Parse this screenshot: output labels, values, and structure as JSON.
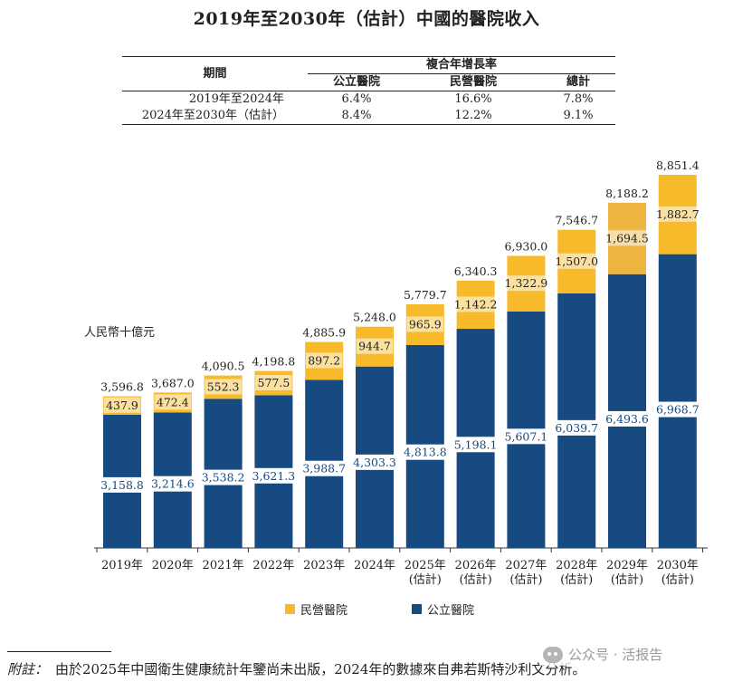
{
  "title": "2019年至2030年（估計）中國的醫院收入",
  "cagr_table": {
    "header_group": "複合年增長率",
    "period_header": "期間",
    "columns": [
      "公立醫院",
      "民營醫院",
      "總計"
    ],
    "rows": [
      {
        "period": "2019年至2024年",
        "values": [
          "6.4%",
          "16.6%",
          "7.8%"
        ]
      },
      {
        "period": "2024年至2030年（估計）",
        "values": [
          "8.4%",
          "12.2%",
          "9.1%"
        ]
      }
    ]
  },
  "unit_label": "人民幣十億元",
  "legend": {
    "private": "民營醫院",
    "public": "公立醫院"
  },
  "colors": {
    "public": "#164a80",
    "private": "#f6ba2a",
    "private_highlight": "#eeb640"
  },
  "footnote": {
    "label": "附註：",
    "text": "由於2025年中國衛生健康統計年鑒尚未出版，2024年的數據來自弗若斯特沙利文分析。"
  },
  "watermark": "公众号 · 活报告",
  "chart_data": {
    "type": "bar",
    "stacked": true,
    "categories": [
      "2019年",
      "2020年",
      "2021年",
      "2022年",
      "2023年",
      "2024年",
      "2025年\n(估計)",
      "2026年\n(估計)",
      "2027年\n(估計)",
      "2028年\n(估計)",
      "2029年\n(估計)",
      "2030年\n(估計)"
    ],
    "series": [
      {
        "name": "公立醫院",
        "values": [
          3158.8,
          3214.6,
          3538.2,
          3621.3,
          3988.7,
          4303.3,
          4813.8,
          5198.1,
          5607.1,
          6039.7,
          6493.6,
          6968.7
        ]
      },
      {
        "name": "民營醫院",
        "values": [
          437.9,
          472.4,
          552.3,
          577.5,
          897.2,
          944.7,
          965.9,
          1142.2,
          1322.9,
          1507.0,
          1694.5,
          1882.7
        ]
      }
    ],
    "totals": [
      3596.8,
      3687.0,
      4090.5,
      4198.8,
      4885.9,
      5248.0,
      5779.7,
      6340.3,
      6930.0,
      7546.7,
      8188.2,
      8851.4
    ],
    "labels": {
      "public": [
        "3,158.8",
        "3,214.6",
        "3,538.2",
        "3,621.3",
        "3,988.7",
        "4,303.3",
        "4,813.8",
        "5,198.1",
        "5,607.1",
        "6,039.7",
        "6,493.6",
        "6,968.7"
      ],
      "private": [
        "437.9",
        "472.4",
        "552.3",
        "577.5",
        "897.2",
        "944.7",
        "965.9",
        "1,142.2",
        "1,322.9",
        "1,507.0",
        "1,694.5",
        "1,882.7"
      ],
      "total": [
        "3,596.8",
        "3,687.0",
        "4,090.5",
        "4,198.8",
        "4,885.9",
        "5,248.0",
        "5,779.7",
        "6,340.3",
        "6,930.0",
        "7,546.7",
        "8,188.2",
        "8,851.4"
      ]
    },
    "ylabel": "人民幣十億元",
    "grid": false
  }
}
